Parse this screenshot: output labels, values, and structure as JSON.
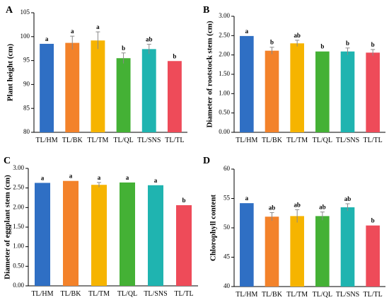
{
  "chart_data": [
    {
      "type": "bar",
      "panel": "A",
      "categories": [
        "TL/HM",
        "TL/BK",
        "TL/TM",
        "TL/QL",
        "TL/SNS",
        "TL/TL"
      ],
      "values": [
        98.5,
        98.7,
        99.2,
        95.5,
        97.4,
        94.9
      ],
      "errors": [
        0.0,
        1.4,
        1.8,
        1.1,
        1.0,
        0.0
      ],
      "significance": [
        "a",
        "a",
        "a",
        "b",
        "ab",
        "b"
      ],
      "ylabel": "Plant height (cm)",
      "xlabel": "",
      "ylim": [
        80,
        105
      ],
      "yticks": [
        "80",
        "85",
        "90",
        "95",
        "100",
        "105"
      ],
      "grid": false
    },
    {
      "type": "bar",
      "panel": "B",
      "categories": [
        "TL/HM",
        "TL/BK",
        "TL/TM",
        "TL/QL",
        "TL/SNS",
        "TL/TL"
      ],
      "values": [
        2.49,
        2.11,
        2.3,
        2.09,
        2.09,
        2.06
      ],
      "errors": [
        0.0,
        0.09,
        0.08,
        0.0,
        0.09,
        0.08
      ],
      "significance": [
        "a",
        "b",
        "ab",
        "b",
        "b",
        "b"
      ],
      "ylabel": "Diameter of rootstock stem (cm)",
      "xlabel": "",
      "ylim": [
        0,
        3
      ],
      "yticks": [
        "0.00",
        "0.50",
        "1.00",
        "1.50",
        "2.00",
        "2.50",
        "3.00"
      ],
      "grid": false
    },
    {
      "type": "bar",
      "panel": "C",
      "categories": [
        "TL/HM",
        "TL/BK",
        "TL/TM",
        "TL/QL",
        "TL/SNS",
        "TL/TL"
      ],
      "values": [
        2.63,
        2.68,
        2.58,
        2.64,
        2.57,
        2.06
      ],
      "errors": [
        0.0,
        0.0,
        0.06,
        0.0,
        0.0,
        0.0
      ],
      "significance": [
        "a",
        "a",
        "a",
        "a",
        "a",
        "b"
      ],
      "ylabel": "Diameter of eggplant stem (cm)",
      "xlabel": "",
      "ylim": [
        0,
        3
      ],
      "yticks": [
        "0.00",
        "0.50",
        "1.00",
        "1.50",
        "2.00",
        "2.50",
        "3.00"
      ],
      "grid": false
    },
    {
      "type": "bar",
      "panel": "D",
      "categories": [
        "TL/HM",
        "TL/BK",
        "TL/TM",
        "TL/QL",
        "TL/SNS",
        "TL/TL"
      ],
      "values": [
        54.2,
        51.9,
        52.0,
        52.0,
        53.5,
        50.4
      ],
      "errors": [
        0.0,
        0.7,
        1.1,
        0.7,
        0.6,
        0.0
      ],
      "significance": [
        "a",
        "ab",
        "ab",
        "ab",
        "ab",
        "b"
      ],
      "ylabel": "Chlorophyll content",
      "xlabel": "",
      "ylim": [
        40,
        60
      ],
      "yticks": [
        "40",
        "45",
        "50",
        "55",
        "60"
      ],
      "grid": false
    }
  ],
  "colors": {
    "bars": [
      "#2f6fc4",
      "#f3822a",
      "#f6b400",
      "#44b135",
      "#1fb4b0",
      "#ee4b59"
    ],
    "axis": "#000000"
  }
}
